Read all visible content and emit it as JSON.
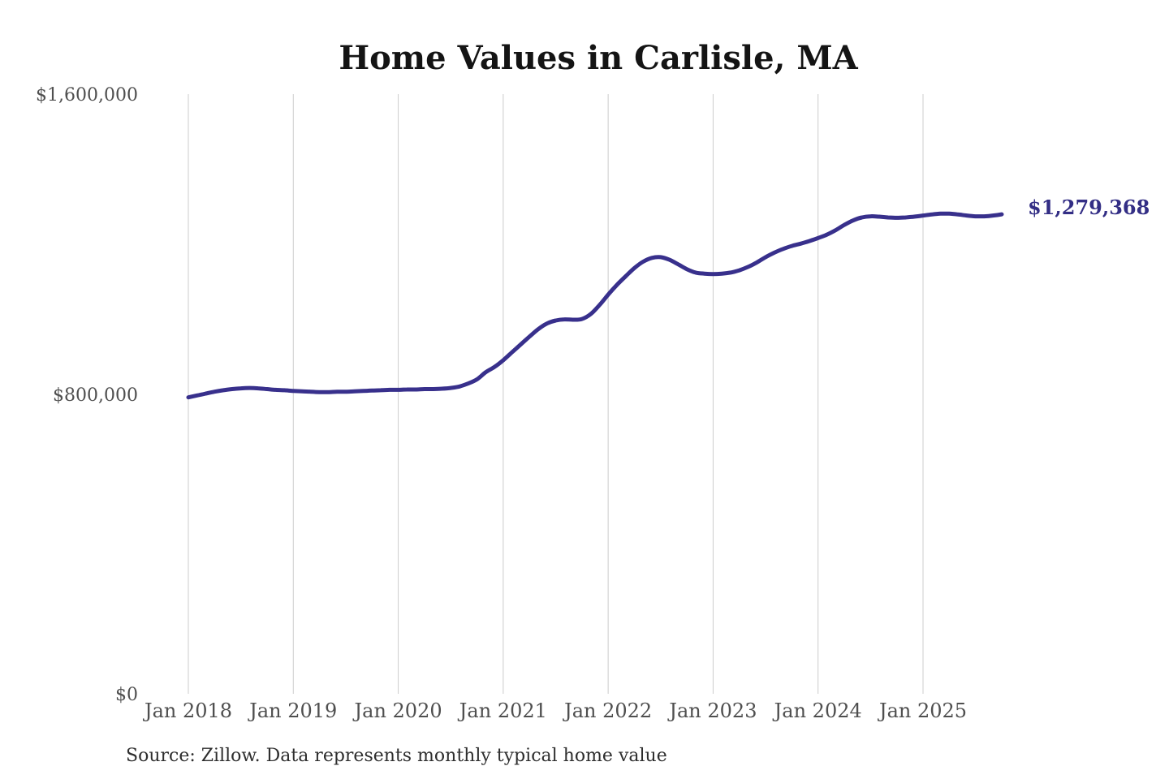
{
  "title": "Home Values in Carlisle, MA",
  "source_note": "Source: Zillow. Data represents monthly typical home value",
  "colors": {
    "line": "#38308c",
    "grid": "#cccccc",
    "tick_text": "#4f4f4f",
    "title_text": "#141414",
    "source_text": "#2e2e2e",
    "end_label_text": "#332e85",
    "background": "#ffffff"
  },
  "chart_data": {
    "type": "line",
    "title": "Home Values in Carlisle, MA",
    "xlabel": "",
    "ylabel": "",
    "ylim": [
      0,
      1600000
    ],
    "grid": "vertical-only",
    "legend": "none",
    "x_tick_labels": [
      "Jan 2018",
      "Jan 2019",
      "Jan 2020",
      "Jan 2021",
      "Jan 2022",
      "Jan 2023",
      "Jan 2024",
      "Jan 2025"
    ],
    "y_ticks": [
      {
        "value": 0,
        "label": "$0"
      },
      {
        "value": 800000,
        "label": "$800,000"
      },
      {
        "value": 1600000,
        "label": "$1,600,000"
      }
    ],
    "series": [
      {
        "name": "Monthly typical home value",
        "start_month": "2018-01",
        "frequency": "monthly",
        "values": [
          791000,
          796000,
          801000,
          806000,
          810000,
          813000,
          815000,
          816000,
          815000,
          813000,
          811000,
          810000,
          808000,
          807000,
          806000,
          805000,
          805000,
          806000,
          806000,
          807000,
          808000,
          809000,
          810000,
          811000,
          811000,
          812000,
          812000,
          813000,
          813000,
          814000,
          816000,
          820000,
          828000,
          839000,
          858000,
          872000,
          890000,
          911000,
          932000,
          953000,
          973000,
          988000,
          996000,
          999000,
          998000,
          1000000,
          1013000,
          1037000,
          1065000,
          1091000,
          1114000,
          1136000,
          1153000,
          1163000,
          1165000,
          1158000,
          1146000,
          1133000,
          1124000,
          1121000,
          1120000,
          1121000,
          1124000,
          1130000,
          1139000,
          1151000,
          1165000,
          1177000,
          1187000,
          1195000,
          1201000,
          1208000,
          1216000,
          1225000,
          1237000,
          1251000,
          1263000,
          1271000,
          1274000,
          1273000,
          1271000,
          1270000,
          1271000,
          1273000,
          1276000,
          1279000,
          1281000,
          1281000,
          1279000,
          1276000,
          1274000,
          1274000,
          1276000,
          1279368
        ]
      }
    ],
    "final_value": 1279368,
    "final_value_label": "$1,279,368"
  }
}
